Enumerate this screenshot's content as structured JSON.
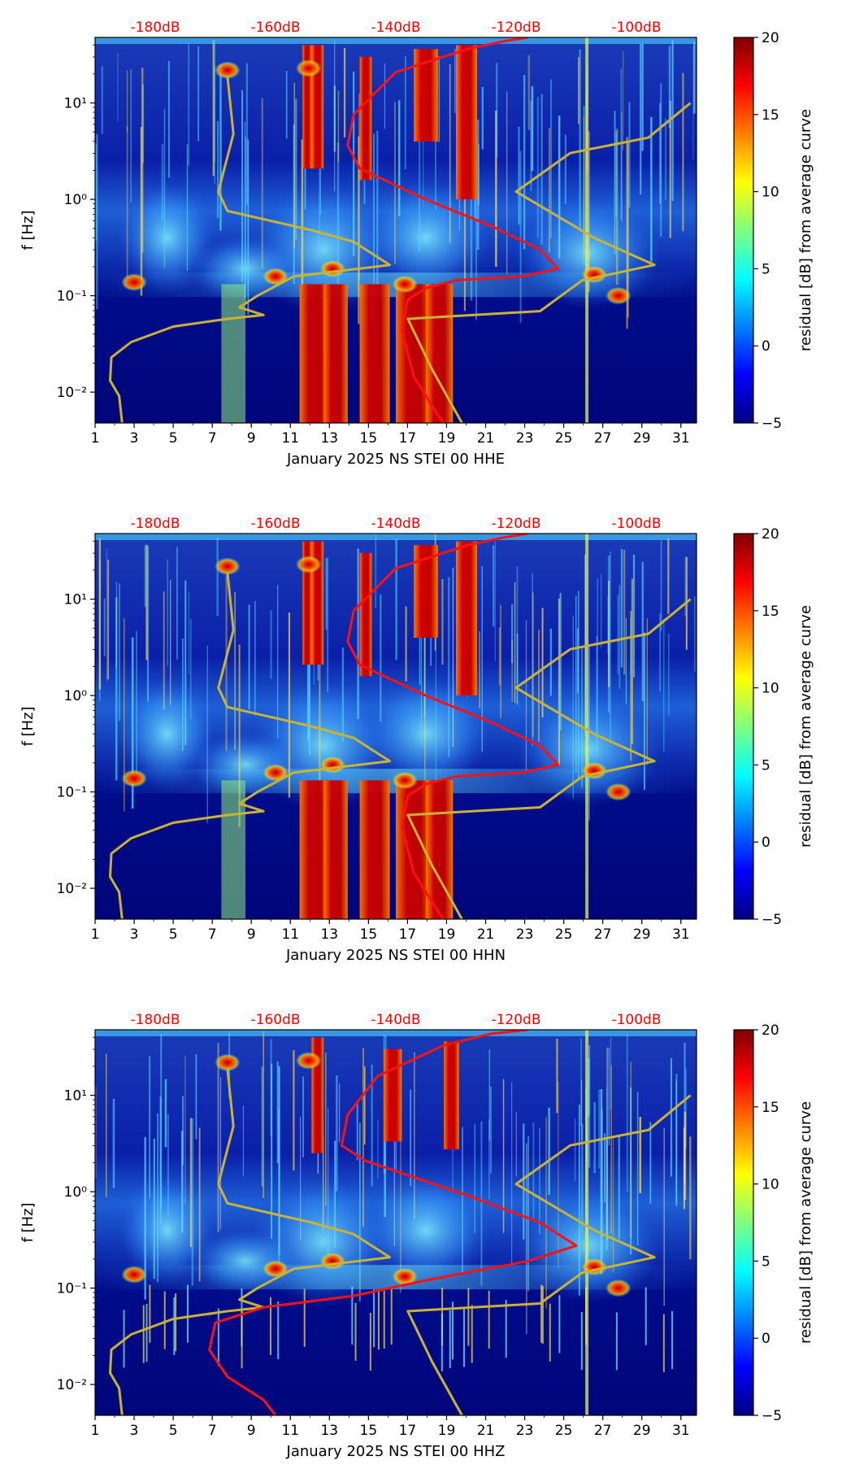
{
  "chart_data": [
    {
      "type": "heatmap",
      "xlabel": "January 2025 NS STEI 00 HHE",
      "ylabel": "f [Hz]",
      "top_axis_labels": [
        "-180dB",
        "-160dB",
        "-140dB",
        "-120dB",
        "-100dB"
      ],
      "colorbar_label": "residual [dB] from average curve",
      "colorbar_ticks": [
        "20",
        "15",
        "10",
        "5",
        "0",
        "−5"
      ],
      "x_ticks": [
        "1",
        "3",
        "5",
        "7",
        "9",
        "11",
        "13",
        "15",
        "17",
        "19",
        "21",
        "23",
        "25",
        "27",
        "29",
        "31"
      ],
      "y_ticks": [
        "10¹",
        "10⁰",
        "10⁻¹",
        "10⁻²"
      ]
    },
    {
      "type": "heatmap",
      "xlabel": "January 2025 NS STEI 00 HHN",
      "ylabel": "f [Hz]",
      "top_axis_labels": [
        "-180dB",
        "-160dB",
        "-140dB",
        "-120dB",
        "-100dB"
      ],
      "colorbar_label": "residual [dB] from average curve",
      "colorbar_ticks": [
        "20",
        "15",
        "10",
        "5",
        "0",
        "−5"
      ],
      "x_ticks": [
        "1",
        "3",
        "5",
        "7",
        "9",
        "11",
        "13",
        "15",
        "17",
        "19",
        "21",
        "23",
        "25",
        "27",
        "29",
        "31"
      ],
      "y_ticks": [
        "10¹",
        "10⁰",
        "10⁻¹",
        "10⁻²"
      ]
    },
    {
      "type": "heatmap",
      "xlabel": "January 2025 NS STEI 00 HHZ",
      "ylabel": "f [Hz]",
      "top_axis_labels": [
        "-180dB",
        "-160dB",
        "-140dB",
        "-120dB",
        "-100dB"
      ],
      "colorbar_label": "residual [dB] from average curve",
      "colorbar_ticks": [
        "20",
        "15",
        "10",
        "5",
        "0",
        "−5"
      ],
      "x_ticks": [
        "1",
        "3",
        "5",
        "7",
        "9",
        "11",
        "13",
        "15",
        "17",
        "19",
        "21",
        "23",
        "25",
        "27",
        "29",
        "31"
      ],
      "y_ticks": [
        "10¹",
        "10⁰",
        "10⁻¹",
        "10⁻²"
      ]
    }
  ]
}
